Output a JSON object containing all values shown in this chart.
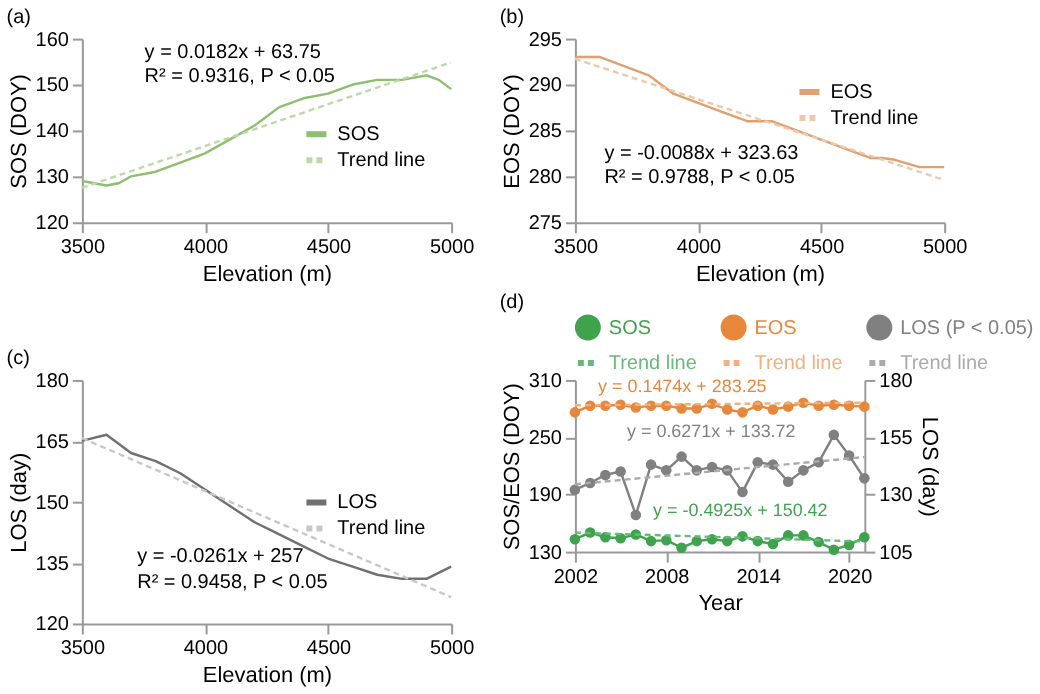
{
  "chart_data": [
    {
      "type": "line",
      "title": "(a)",
      "xlabel": "Elevation (m)",
      "ylabel": "SOS (DOY)",
      "xlim": [
        3500,
        5000
      ],
      "xticks": [
        3500,
        4000,
        4500,
        5000
      ],
      "ylim": [
        120,
        160
      ],
      "yticks": [
        120,
        130,
        140,
        150,
        160
      ],
      "legend": "right",
      "annotations": [
        "y = 0.0182x + 63.75",
        "R² = 0.9316, P < 0.05"
      ],
      "series": [
        {
          "name": "SOS",
          "color": "#8cbf6e",
          "x": [
            3500,
            3550,
            3600,
            3650,
            3700,
            3800,
            3900,
            4000,
            4100,
            4200,
            4300,
            4400,
            4500,
            4600,
            4700,
            4800,
            4900,
            4950,
            5000
          ],
          "values": [
            129,
            128.5,
            128,
            128.5,
            130,
            131,
            133,
            135,
            138,
            141,
            145,
            147,
            148,
            150,
            151,
            151,
            152,
            151,
            149
          ]
        },
        {
          "name": "Trend line",
          "color": "#bcd9a8",
          "line_style": "dotted",
          "x": [
            3500,
            5000
          ],
          "values": [
            127.5,
            154.8
          ]
        }
      ]
    },
    {
      "type": "line",
      "title": "(b)",
      "xlabel": "Elevation (m)",
      "ylabel": "EOS (DOY)",
      "xlim": [
        3500,
        5000
      ],
      "xticks": [
        3500,
        4000,
        4500,
        5000
      ],
      "ylim": [
        275,
        295
      ],
      "yticks": [
        275,
        280,
        285,
        290,
        295
      ],
      "legend": "top right",
      "annotations": [
        "y = -0.0088x + 323.63",
        "R² = 0.9788, P < 0.05"
      ],
      "series": [
        {
          "name": "EOS",
          "color": "#e0a070",
          "x": [
            3500,
            3600,
            3700,
            3800,
            3850,
            3900,
            4000,
            4100,
            4200,
            4300,
            4400,
            4500,
            4600,
            4700,
            4750,
            4800,
            4900,
            5000
          ],
          "values": [
            293,
            293,
            292,
            291,
            290,
            289,
            288,
            287,
            286,
            286,
            285,
            284,
            283,
            282,
            282,
            281.8,
            281,
            281
          ]
        },
        {
          "name": "Trend line",
          "color": "#f0c8a8",
          "line_style": "dotted",
          "x": [
            3500,
            5000
          ],
          "values": [
            292.8,
            279.6
          ]
        }
      ]
    },
    {
      "type": "line",
      "title": "(c)",
      "xlabel": "Elevation (m)",
      "ylabel": "LOS (day)",
      "xlim": [
        3500,
        5000
      ],
      "xticks": [
        3500,
        4000,
        4500,
        5000
      ],
      "ylim": [
        120,
        180
      ],
      "yticks": [
        120,
        135,
        150,
        165,
        180
      ],
      "legend": "right",
      "annotations": [
        "y = -0.0261x + 257",
        "R² = 0.9458, P < 0.05"
      ],
      "series": [
        {
          "name": "LOS",
          "color": "#707070",
          "x": [
            3500,
            3600,
            3700,
            3800,
            3900,
            4000,
            4100,
            4200,
            4300,
            4400,
            4500,
            4600,
            4700,
            4800,
            4900,
            5000
          ],
          "values": [
            165,
            166.5,
            162,
            160,
            157,
            153,
            149,
            145,
            142,
            139,
            136,
            134,
            132,
            131,
            131,
            134
          ]
        },
        {
          "name": "Trend line",
          "color": "#c8c8c8",
          "line_style": "dotted",
          "x": [
            3500,
            5000
          ],
          "values": [
            165.7,
            126.5
          ]
        }
      ]
    },
    {
      "type": "line",
      "title": "(d)",
      "xlabel": "Year",
      "ylabel": "SOS/EOS (DOY)",
      "y2label": "LOS (day)",
      "xlim": [
        2002,
        2021
      ],
      "xticks": [
        2002,
        2008,
        2014,
        2020
      ],
      "ylim": [
        130,
        310
      ],
      "yticks": [
        130,
        190,
        250,
        310
      ],
      "y2lim": [
        105,
        180
      ],
      "y2ticks": [
        105,
        130,
        155,
        180
      ],
      "legend": "top",
      "x": [
        2002,
        2003,
        2004,
        2005,
        2006,
        2007,
        2008,
        2009,
        2010,
        2011,
        2012,
        2013,
        2014,
        2015,
        2016,
        2017,
        2018,
        2019,
        2020,
        2021
      ],
      "annotations": [
        "y = 0.1474x + 283.25",
        "y = 0.6271x + 133.72",
        "y = -0.4925x + 150.42"
      ],
      "series": [
        {
          "name": "SOS",
          "color": "#3fa34d",
          "marker": "circle",
          "values": [
            143,
            150,
            145,
            144,
            148,
            141,
            142,
            134,
            141,
            143,
            141,
            146,
            141,
            138,
            147,
            147,
            140,
            132,
            137,
            145
          ]
        },
        {
          "name": "EOS",
          "color": "#e8873a",
          "marker": "circle",
          "values": [
            276,
            283,
            283,
            284,
            281,
            283,
            283,
            280,
            280,
            285,
            279,
            276,
            283,
            279,
            282,
            286,
            283,
            284,
            283,
            282
          ]
        },
        {
          "name": "LOS (P < 0.05)",
          "color": "#808080",
          "marker": "circle",
          "axis": "y2",
          "values": [
            132,
            135,
            138.5,
            140,
            121,
            143,
            140.5,
            146.5,
            140.5,
            142,
            140.5,
            131,
            144,
            143,
            135.5,
            140.5,
            144,
            156,
            147,
            137
          ]
        },
        {
          "name": "Trend line",
          "color": "#66bb77",
          "line_style": "dotted",
          "x": [
            2002,
            2021
          ],
          "values": [
            149.9,
            140.6
          ]
        },
        {
          "name": "Trend line",
          "color": "#f0b080",
          "line_style": "dotted",
          "x": [
            2002,
            2021
          ],
          "values": [
            283.4,
            286.2
          ]
        },
        {
          "name": "Trend line",
          "color": "#aaaaaa",
          "line_style": "dotted",
          "axis": "y2",
          "x": [
            2002,
            2021
          ],
          "values": [
            134.4,
            146.3
          ]
        }
      ]
    }
  ]
}
